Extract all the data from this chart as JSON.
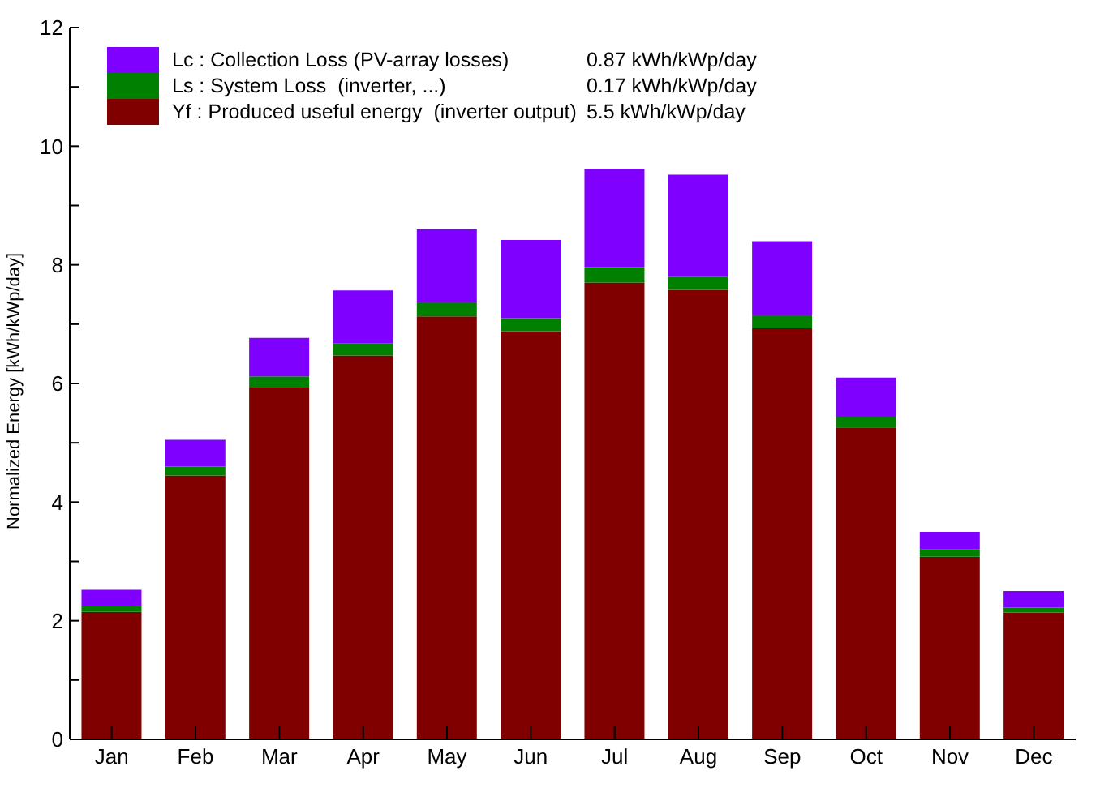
{
  "chart_data": {
    "type": "bar",
    "stacked": true,
    "ylabel": "Normalized Energy [kWh/kWp/day]",
    "categories": [
      "Jan",
      "Feb",
      "Mar",
      "Apr",
      "May",
      "Jun",
      "Jul",
      "Aug",
      "Sep",
      "Oct",
      "Nov",
      "Dec"
    ],
    "series": [
      {
        "name": "Yf : Produced useful energy  (inverter output)",
        "color": "#800000",
        "values": [
          2.15,
          4.45,
          5.93,
          6.47,
          7.13,
          6.88,
          7.7,
          7.58,
          6.93,
          5.26,
          3.08,
          2.14
        ]
      },
      {
        "name": "Ls : System Loss  (inverter, ...)",
        "color": "#008000",
        "values": [
          0.1,
          0.15,
          0.19,
          0.21,
          0.24,
          0.22,
          0.26,
          0.22,
          0.22,
          0.18,
          0.12,
          0.08
        ]
      },
      {
        "name": "Lc : Collection Loss (PV-array losses)",
        "color": "#8000ff",
        "values": [
          0.27,
          0.45,
          0.65,
          0.89,
          1.23,
          1.32,
          1.66,
          1.72,
          1.25,
          0.66,
          0.3,
          0.28
        ]
      }
    ],
    "annotations": [
      "5.5 kWh/kWp/day",
      "0.17 kWh/kWp/day",
      "0.87 kWh/kWp/day"
    ],
    "ylim": [
      0,
      12
    ],
    "yticks": [
      0,
      {
        "value": 1,
        "label": null
      },
      2,
      {
        "value": 3,
        "label": null
      },
      4,
      {
        "value": 5,
        "label": null
      },
      6,
      {
        "value": 7,
        "label": null
      },
      8,
      {
        "value": 9,
        "label": null
      },
      10,
      {
        "value": 11,
        "label": null
      },
      12
    ],
    "legend": "top left",
    "grid": false
  }
}
